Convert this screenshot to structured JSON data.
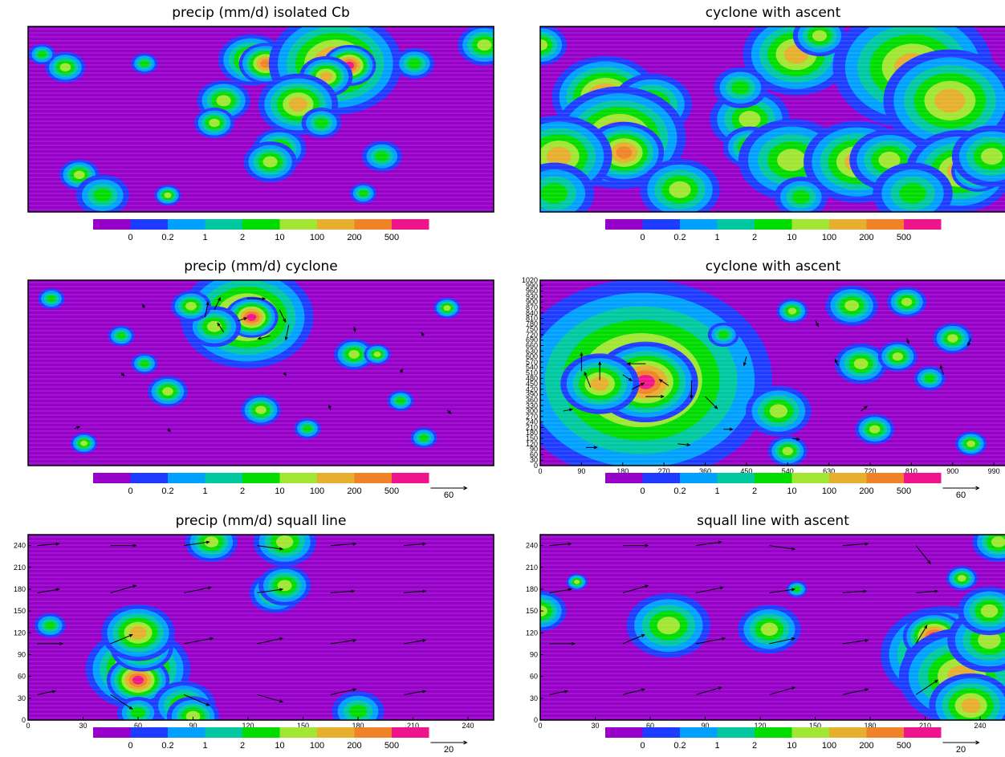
{
  "chart_data": [
    {
      "type": "contour",
      "title": "precip (mm/d) isolated Cb",
      "xlim": [
        0,
        100
      ],
      "ylim": [
        0,
        100
      ],
      "colorbar": {
        "colors": [
          "#9600c8",
          "#1e3cff",
          "#00a0ff",
          "#00c8a0",
          "#00dc00",
          "#a0e632",
          "#e6af2d",
          "#f08228",
          "#f0148c"
        ],
        "levels": [
          0,
          0.2,
          1,
          2,
          10,
          100,
          200,
          500
        ]
      },
      "cells": {
        "x": [
          48,
          51,
          66,
          69,
          64,
          58,
          42,
          40,
          54,
          52,
          11,
          16,
          30,
          8,
          98,
          83,
          25,
          3,
          63,
          76,
          72
        ],
        "y": [
          82,
          80,
          80,
          79,
          73,
          58,
          60,
          48,
          34,
          27,
          20,
          9,
          9,
          78,
          90,
          80,
          80,
          85,
          48,
          30,
          10
        ],
        "size": [
          2.5,
          2,
          5,
          2,
          2,
          3,
          2,
          1.5,
          2,
          2,
          1.5,
          2,
          1,
          1.5,
          2,
          1.5,
          1,
          1,
          1.5,
          1.5,
          1
        ],
        "values": [
          100,
          200,
          200,
          500,
          100,
          100,
          10,
          10,
          10,
          10,
          10,
          2,
          10,
          10,
          10,
          2,
          2,
          2,
          2,
          2,
          2
        ]
      }
    },
    {
      "type": "contour",
      "title": "cyclone with ascent",
      "xlim": [
        0,
        100
      ],
      "ylim": [
        0,
        100
      ],
      "colorbar": {
        "colors": [
          "#9600c8",
          "#1e3cff",
          "#00a0ff",
          "#00c8a0",
          "#00dc00",
          "#a0e632",
          "#e6af2d",
          "#f08228",
          "#f0148c"
        ],
        "levels": [
          0,
          0.2,
          1,
          2,
          10,
          100,
          200,
          500
        ]
      },
      "cells": {
        "x": [
          55,
          80,
          88,
          14,
          24,
          17,
          18,
          4,
          45,
          45,
          54,
          68,
          75,
          90,
          94,
          97,
          43,
          60,
          0,
          3,
          30,
          80,
          56
        ],
        "y": [
          85,
          78,
          60,
          62,
          58,
          40,
          32,
          30,
          50,
          35,
          28,
          27,
          28,
          22,
          22,
          30,
          67,
          95,
          90,
          10,
          12,
          10,
          8
        ],
        "size": [
          4,
          6,
          5,
          4,
          3,
          5,
          3,
          4,
          3,
          2,
          4,
          4,
          3,
          4,
          2,
          3,
          2,
          2,
          2,
          3,
          3,
          3,
          2
        ],
        "values": [
          100,
          100,
          100,
          200,
          10,
          200,
          200,
          100,
          10,
          10,
          10,
          100,
          10,
          100,
          200,
          10,
          2,
          10,
          10,
          2,
          10,
          2,
          2
        ]
      }
    },
    {
      "type": "contour",
      "title": "precip (mm/d) cyclone",
      "xlim": [
        0,
        100
      ],
      "ylim": [
        0,
        100
      ],
      "colorbar": {
        "colors": [
          "#9600c8",
          "#1e3cff",
          "#00a0ff",
          "#00c8a0",
          "#00dc00",
          "#a0e632",
          "#e6af2d",
          "#f08228",
          "#f0148c"
        ],
        "levels": [
          0,
          0.2,
          1,
          2,
          10,
          100,
          200,
          500
        ]
      },
      "cells": {
        "x": [
          47,
          48,
          40,
          35,
          70,
          30,
          50,
          75,
          12,
          90,
          5,
          20,
          60,
          80,
          25,
          85
        ],
        "y": [
          80,
          80,
          75,
          86,
          60,
          40,
          30,
          60,
          12,
          85,
          90,
          70,
          20,
          35,
          55,
          15
        ],
        "size": [
          5,
          2,
          2,
          1.5,
          1.5,
          1.5,
          1.5,
          1,
          1,
          1,
          1,
          1,
          1,
          1,
          1,
          1
        ],
        "values": [
          200,
          500,
          10,
          10,
          10,
          10,
          10,
          10,
          10,
          10,
          2,
          2,
          2,
          2,
          2,
          2
        ]
      },
      "vectors": {
        "x": [
          40,
          47,
          54,
          56,
          52,
          42,
          38,
          45,
          20,
          80,
          10,
          30,
          65,
          90,
          70,
          25,
          55,
          85
        ],
        "y": [
          84,
          90,
          84,
          76,
          70,
          72,
          80,
          78,
          50,
          50,
          20,
          20,
          30,
          30,
          75,
          85,
          50,
          70
        ],
        "u": [
          10,
          30,
          10,
          -5,
          -20,
          -10,
          5,
          15,
          5,
          3,
          8,
          4,
          -3,
          6,
          2,
          -3,
          3,
          -4
        ],
        "v": [
          20,
          0,
          -20,
          -25,
          -5,
          15,
          25,
          5,
          -5,
          6,
          3,
          -5,
          8,
          -6,
          -8,
          6,
          -4,
          5
        ]
      },
      "vector_key": 60
    },
    {
      "type": "contour",
      "title": "cyclone with ascent",
      "xlim": [
        0,
        1016
      ],
      "ylim": [
        0,
        1020
      ],
      "xticks": [
        0,
        90,
        180,
        270,
        360,
        450,
        540,
        630,
        720,
        810,
        900,
        990
      ],
      "yticks": [
        0,
        30,
        60,
        90,
        120,
        150,
        180,
        210,
        240,
        270,
        300,
        330,
        360,
        390,
        420,
        450,
        480,
        510,
        540,
        570,
        600,
        630,
        660,
        690,
        720,
        750,
        780,
        810,
        840,
        870,
        900,
        930,
        960,
        990,
        1020
      ],
      "colorbar": {
        "colors": [
          "#9600c8",
          "#1e3cff",
          "#00a0ff",
          "#00c8a0",
          "#00dc00",
          "#a0e632",
          "#e6af2d",
          "#f08228",
          "#f0148c"
        ],
        "levels": [
          0,
          0.2,
          1,
          2,
          10,
          100,
          200,
          500
        ]
      },
      "cells": {
        "x": [
          220,
          230,
          130,
          520,
          540,
          700,
          780,
          900,
          550,
          680,
          800,
          940,
          730,
          850,
          400
        ],
        "y": [
          470,
          460,
          450,
          300,
          80,
          560,
          600,
          700,
          850,
          880,
          900,
          120,
          200,
          480,
          720
        ],
        "size": [
          100,
          40,
          30,
          25,
          15,
          20,
          15,
          15,
          12,
          20,
          15,
          12,
          15,
          12,
          12
        ],
        "values": [
          200,
          500,
          100,
          10,
          10,
          10,
          10,
          10,
          10,
          10,
          10,
          10,
          10,
          2,
          2
        ]
      },
      "vectors": {
        "x": [
          130,
          230,
          330,
          360,
          230,
          110,
          90,
          180,
          280,
          200,
          50,
          400,
          550,
          700,
          880,
          940,
          100,
          300,
          600,
          800,
          450,
          650
        ],
        "y": [
          470,
          560,
          470,
          380,
          380,
          430,
          520,
          500,
          440,
          420,
          300,
          200,
          150,
          300,
          500,
          700,
          100,
          120,
          800,
          700,
          600,
          550
        ],
        "u": [
          0,
          -30,
          0,
          20,
          30,
          -10,
          0,
          15,
          -15,
          20,
          15,
          15,
          12,
          10,
          -5,
          -5,
          18,
          20,
          5,
          3,
          -4,
          -5
        ],
        "v": [
          30,
          0,
          -30,
          -20,
          0,
          25,
          30,
          -10,
          10,
          10,
          3,
          0,
          -2,
          8,
          15,
          -12,
          0,
          -2,
          -10,
          -8,
          -15,
          10
        ]
      },
      "vector_key": 60
    },
    {
      "type": "contour",
      "title": "precip (mm/d) squall line",
      "xlim": [
        0,
        254
      ],
      "ylim": [
        0,
        255
      ],
      "xticks": [
        0,
        30,
        60,
        90,
        120,
        150,
        180,
        210,
        240
      ],
      "yticks": [
        0,
        30,
        60,
        90,
        120,
        150,
        180,
        210,
        240
      ],
      "colorbar": {
        "colors": [
          "#9600c8",
          "#1e3cff",
          "#00a0ff",
          "#00c8a0",
          "#00dc00",
          "#a0e632",
          "#e6af2d",
          "#f08228",
          "#f0148c"
        ],
        "levels": [
          0,
          0.2,
          1,
          2,
          10,
          100,
          200,
          500
        ]
      },
      "cells": {
        "x": [
          60,
          60,
          62,
          60,
          85,
          90,
          135,
          140,
          100,
          140,
          180,
          60,
          12
        ],
        "y": [
          70,
          55,
          100,
          120,
          20,
          5,
          175,
          185,
          245,
          245,
          12,
          10,
          130
        ],
        "size": [
          10,
          6,
          6,
          7,
          6,
          5,
          5,
          5,
          5,
          6,
          5,
          4,
          3
        ],
        "values": [
          200,
          500,
          200,
          100,
          10,
          10,
          10,
          10,
          10,
          10,
          2,
          2,
          2
        ]
      },
      "vectors": {
        "x": [
          5,
          45,
          85,
          125,
          165,
          205,
          5,
          45,
          85,
          125,
          165,
          205,
          5,
          45,
          85,
          125,
          165,
          205,
          5,
          45,
          85,
          125,
          165,
          205
        ],
        "y": [
          240,
          240,
          240,
          240,
          240,
          240,
          175,
          175,
          175,
          175,
          175,
          175,
          105,
          105,
          105,
          105,
          105,
          105,
          35,
          35,
          35,
          35,
          35,
          35
        ],
        "u": [
          12,
          14,
          14,
          14,
          14,
          12,
          12,
          14,
          15,
          14,
          13,
          12,
          14,
          12,
          16,
          14,
          14,
          12,
          10,
          12,
          14,
          14,
          14,
          12
        ],
        "v": [
          1,
          0,
          2,
          -2,
          1,
          1,
          2,
          4,
          3,
          2,
          1,
          1,
          0,
          5,
          3,
          3,
          2,
          2,
          2,
          -8,
          -6,
          -4,
          3,
          2
        ]
      },
      "vector_key": 20
    },
    {
      "type": "contour",
      "title": "squall line with ascent",
      "xlim": [
        0,
        254
      ],
      "ylim": [
        0,
        255
      ],
      "xticks": [
        0,
        30,
        60,
        90,
        120,
        150,
        180,
        210,
        240
      ],
      "yticks": [
        0,
        30,
        60,
        90,
        120,
        150,
        180,
        210,
        240
      ],
      "colorbar": {
        "colors": [
          "#9600c8",
          "#1e3cff",
          "#00a0ff",
          "#00c8a0",
          "#00dc00",
          "#a0e632",
          "#e6af2d",
          "#f08228",
          "#f0148c"
        ],
        "levels": [
          0,
          0.2,
          1,
          2,
          10,
          100,
          200,
          500
        ]
      },
      "cells": {
        "x": [
          220,
          213,
          215,
          230,
          235,
          245,
          245,
          250,
          77,
          120,
          70,
          125,
          0,
          20,
          230,
          140
        ],
        "y": [
          90,
          85,
          115,
          60,
          20,
          110,
          150,
          245,
          135,
          130,
          130,
          125,
          150,
          190,
          195,
          180
        ],
        "size": [
          12,
          5,
          6,
          12,
          8,
          8,
          6,
          5,
          4,
          4,
          8,
          6,
          5,
          2,
          3,
          2
        ],
        "values": [
          200,
          500,
          500,
          100,
          100,
          10,
          10,
          10,
          100,
          100,
          10,
          10,
          10,
          10,
          10,
          2
        ]
      },
      "vectors": {
        "x": [
          5,
          45,
          85,
          125,
          165,
          205,
          5,
          45,
          85,
          125,
          165,
          205,
          5,
          45,
          85,
          125,
          165,
          205,
          5,
          45,
          85,
          125,
          165,
          205
        ],
        "y": [
          240,
          240,
          240,
          240,
          240,
          240,
          175,
          175,
          175,
          175,
          175,
          175,
          105,
          105,
          105,
          105,
          105,
          105,
          35,
          35,
          35,
          35,
          35,
          35
        ],
        "u": [
          12,
          14,
          14,
          14,
          14,
          8,
          12,
          14,
          15,
          14,
          13,
          12,
          14,
          12,
          16,
          14,
          14,
          6,
          10,
          12,
          14,
          14,
          14,
          12
        ],
        "v": [
          1,
          0,
          2,
          -2,
          1,
          -10,
          2,
          4,
          3,
          2,
          1,
          1,
          0,
          5,
          3,
          3,
          2,
          10,
          2,
          3,
          4,
          4,
          3,
          8
        ]
      },
      "vector_key": 20
    }
  ]
}
